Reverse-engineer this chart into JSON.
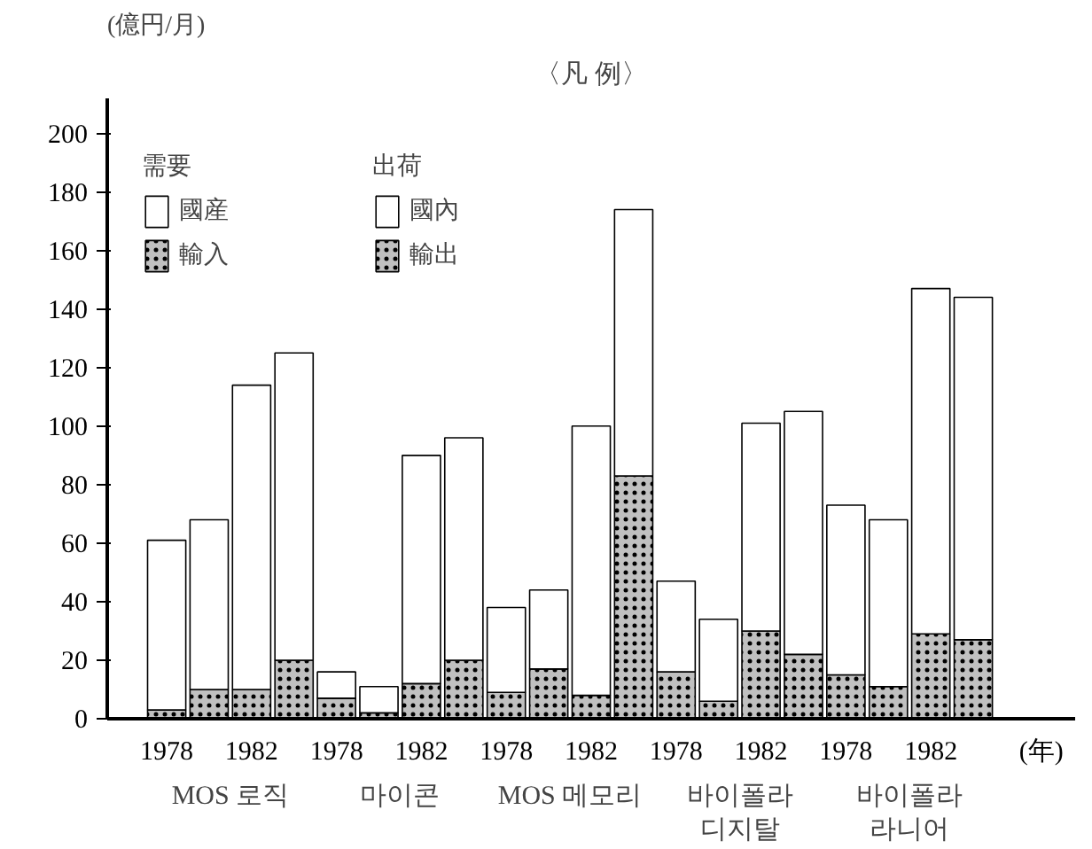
{
  "chart_data": {
    "type": "bar",
    "stacked": true,
    "title": "〈凡 例〉",
    "ylabel": "(億円/月)",
    "xlabel": "(年)",
    "categories": [
      "1978",
      null,
      "1982",
      null,
      "1978",
      null,
      "1982",
      null,
      "1978",
      null,
      "1982",
      null,
      "1978",
      null,
      "1982",
      null,
      "1978",
      null,
      "1982",
      null
    ],
    "series": [
      {
        "name": "輸入",
        "color": "#c0c0c0",
        "values": [
          3,
          null,
          10,
          null,
          7,
          null,
          12,
          null,
          9,
          null,
          8,
          null,
          16,
          null,
          30,
          null,
          15,
          null,
          29,
          null
        ]
      },
      {
        "name": "國産",
        "color": "#ffffff",
        "values": [
          58,
          null,
          104,
          null,
          9,
          null,
          78,
          null,
          29,
          null,
          92,
          null,
          31,
          null,
          71,
          null,
          58,
          null,
          118,
          null
        ]
      },
      {
        "name": "輸出",
        "color": "#c0c0c0",
        "values": [
          null,
          10,
          null,
          20,
          null,
          2,
          null,
          20,
          null,
          17,
          null,
          83,
          null,
          6,
          null,
          22,
          null,
          11,
          null,
          27
        ]
      },
      {
        "name": "國內",
        "color": "#ffffff",
        "values": [
          null,
          58,
          null,
          105,
          null,
          9,
          null,
          76,
          null,
          27,
          null,
          91,
          null,
          28,
          null,
          83,
          null,
          57,
          null,
          117
        ]
      }
    ],
    "annotations": [
      "需要",
      "出荷",
      "MOS 로직",
      "마이콘",
      "MOS 메모리",
      "바이폴라\n디지탈",
      "바이폴라\n라니어"
    ],
    "ylim": [
      0,
      212
    ],
    "yticks": [
      0,
      20,
      40,
      60,
      80,
      100,
      120,
      140,
      160,
      180,
      200
    ],
    "grid": false,
    "legend": "top left"
  }
}
